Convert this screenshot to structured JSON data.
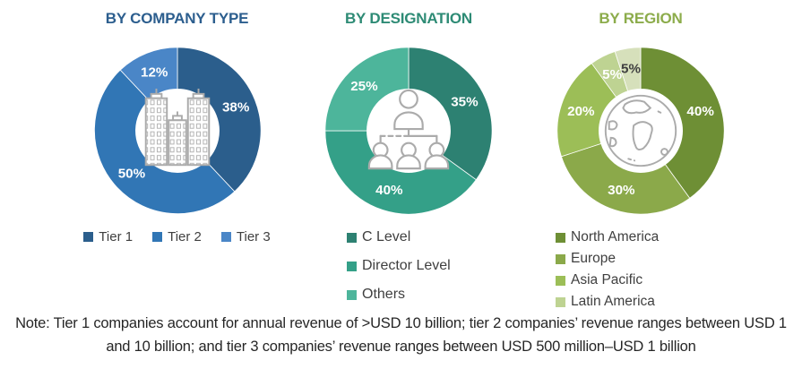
{
  "chart_data": [
    {
      "type": "donut",
      "title": "BY COMPANY TYPE",
      "title_color": "#2C5E8E",
      "center_icon": "buildings-icon",
      "legend_layout": "horizontal",
      "start_angle_deg": 0,
      "direction": "clockwise",
      "slices": [
        {
          "label": "Tier 1",
          "value": 38,
          "color": "#2B5E8C",
          "label_color": "#FFFFFF"
        },
        {
          "label": "Tier 2",
          "value": 50,
          "color": "#3176B5",
          "label_color": "#FFFFFF"
        },
        {
          "label": "Tier 3",
          "value": 12,
          "color": "#4A86C7",
          "label_color": "#FFFFFF"
        }
      ]
    },
    {
      "type": "donut",
      "title": "BY DESIGNATION",
      "title_color": "#2E8B75",
      "center_icon": "org-chart-icon",
      "legend_layout": "vertical",
      "start_angle_deg": 0,
      "direction": "clockwise",
      "slices": [
        {
          "label": "C Level",
          "value": 35,
          "color": "#2D8172",
          "label_color": "#FFFFFF"
        },
        {
          "label": "Director Level",
          "value": 40,
          "color": "#34A088",
          "label_color": "#FFFFFF"
        },
        {
          "label": "Others",
          "value": 25,
          "color": "#4DB59B",
          "label_color": "#FFFFFF"
        }
      ]
    },
    {
      "type": "donut",
      "title": "BY REGION",
      "title_color": "#8CAC4B",
      "center_icon": "globe-icon",
      "legend_layout": "vertical",
      "start_angle_deg": 0,
      "direction": "clockwise",
      "slices": [
        {
          "label": "North America",
          "value": 40,
          "color": "#6E8F35",
          "label_color": "#FFFFFF"
        },
        {
          "label": "Europe",
          "value": 30,
          "color": "#8BA94A",
          "label_color": "#FFFFFF"
        },
        {
          "label": "Asia Pacific",
          "value": 20,
          "color": "#9CBE57",
          "label_color": "#FFFFFF"
        },
        {
          "label": "Latin America",
          "value": 5,
          "color": "#BED392",
          "label_color": "#FFFFFF"
        },
        {
          "label": "",
          "value": 5,
          "color": "#D6E0BB",
          "label_color": "#404040",
          "in_legend": false
        }
      ]
    }
  ],
  "note": "Note: Tier 1 companies account for annual revenue of >USD 10 billion; tier 2 companies’ revenue ranges between USD 1 and 10 billion; and tier 3 companies’ revenue ranges between USD 500 million–USD 1 billion"
}
